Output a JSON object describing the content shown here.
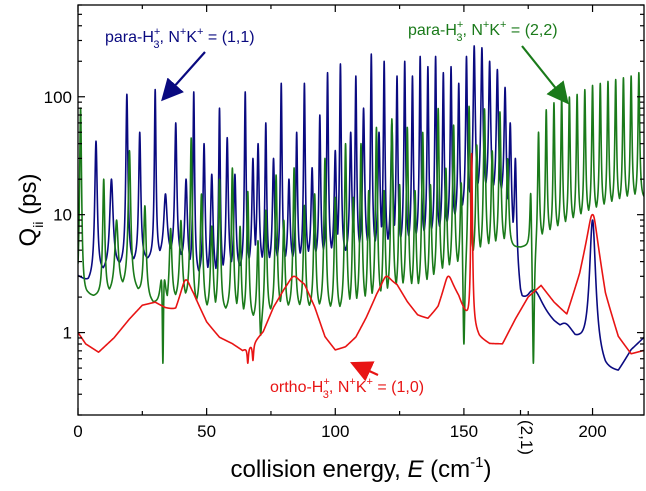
{
  "chart_data": {
    "type": "line",
    "title": "",
    "xlabel": {
      "main": "collision energy, ",
      "italic": "E",
      "unit": " (cm",
      "sup": "-1",
      "close": ")"
    },
    "ylabel": {
      "main": "Q",
      "sub": "ii",
      "unit": " (ps)"
    },
    "xlim": [
      0,
      220
    ],
    "ylim": [
      0.2,
      600
    ],
    "yscale": "log",
    "xticks": [
      {
        "v": 0,
        "label": "0"
      },
      {
        "v": 50,
        "label": "50"
      },
      {
        "v": 100,
        "label": "100"
      },
      {
        "v": 150,
        "label": "150"
      },
      {
        "v": 200,
        "label": "200"
      }
    ],
    "yticks": [
      {
        "v": 1,
        "label": "1"
      },
      {
        "v": 10,
        "label": "10"
      },
      {
        "v": 100,
        "label": "100"
      }
    ],
    "threshold_label": "(2,1)",
    "threshold_x": 172,
    "series": [
      {
        "key": "para11",
        "color": "#0a0a80",
        "baseline": [
          [
            0,
            3.0
          ],
          [
            4,
            2.6
          ],
          [
            10,
            3.2
          ],
          [
            15,
            3.5
          ],
          [
            22,
            3.8
          ],
          [
            30,
            4.2
          ],
          [
            38,
            4.5
          ],
          [
            45,
            3.0
          ],
          [
            52,
            2.6
          ],
          [
            60,
            3.2
          ],
          [
            70,
            3.5
          ],
          [
            80,
            3.6
          ],
          [
            90,
            4.0
          ],
          [
            100,
            4.2
          ],
          [
            110,
            4.5
          ],
          [
            120,
            4.8
          ],
          [
            128,
            5.2
          ],
          [
            135,
            5.8
          ],
          [
            142,
            6.5
          ],
          [
            148,
            9.0
          ],
          [
            152,
            12.0
          ],
          [
            156,
            14.0
          ],
          [
            160,
            14.0
          ],
          [
            165,
            13.0
          ],
          [
            169,
            6.0
          ],
          [
            172,
            2.0
          ],
          [
            175,
            1.5
          ],
          [
            180,
            1.3
          ],
          [
            185,
            1.1
          ],
          [
            190,
            1.0
          ],
          [
            195,
            0.8
          ],
          [
            200,
            0.6
          ],
          [
            205,
            0.45
          ],
          [
            210,
            0.45
          ],
          [
            215,
            0.7
          ],
          [
            220,
            0.9
          ]
        ],
        "peaks": [
          [
            7,
            42,
            0.6
          ],
          [
            13,
            20,
            0.8
          ],
          [
            19,
            105,
            0.5
          ],
          [
            24,
            50,
            0.5
          ],
          [
            30,
            115,
            0.4
          ],
          [
            34,
            15,
            0.8
          ],
          [
            38,
            60,
            0.5
          ],
          [
            42,
            20,
            0.6
          ],
          [
            45,
            110,
            0.4
          ],
          [
            49,
            40,
            0.5
          ],
          [
            52,
            22,
            0.6
          ],
          [
            55,
            80,
            0.4
          ],
          [
            58,
            45,
            0.5
          ],
          [
            61,
            22,
            0.5
          ],
          [
            65,
            110,
            0.4
          ],
          [
            68,
            30,
            0.5
          ],
          [
            70,
            40,
            0.5
          ],
          [
            73,
            60,
            0.4
          ],
          [
            76,
            30,
            0.5
          ],
          [
            79,
            130,
            0.4
          ],
          [
            82,
            20,
            0.5
          ],
          [
            85,
            50,
            0.4
          ],
          [
            88,
            130,
            0.4
          ],
          [
            91,
            25,
            0.5
          ],
          [
            94,
            70,
            0.4
          ],
          [
            97,
            160,
            0.4
          ],
          [
            100,
            35,
            0.5
          ],
          [
            102,
            190,
            0.4
          ],
          [
            106,
            50,
            0.5
          ],
          [
            108,
            150,
            0.4
          ],
          [
            111,
            80,
            0.5
          ],
          [
            114,
            230,
            0.4
          ],
          [
            117,
            50,
            0.5
          ],
          [
            119,
            200,
            0.4
          ],
          [
            122,
            60,
            0.5
          ],
          [
            124,
            150,
            0.4
          ],
          [
            127,
            200,
            0.4
          ],
          [
            130,
            150,
            0.4
          ],
          [
            133,
            220,
            0.4
          ],
          [
            136,
            180,
            0.4
          ],
          [
            139,
            220,
            0.4
          ],
          [
            142,
            160,
            0.4
          ],
          [
            145,
            180,
            0.4
          ],
          [
            148,
            130,
            0.4
          ],
          [
            151,
            220,
            0.4
          ],
          [
            154,
            270,
            0.5
          ],
          [
            157,
            260,
            0.5
          ],
          [
            160,
            200,
            0.5
          ],
          [
            163,
            170,
            0.5
          ],
          [
            166,
            120,
            0.5
          ],
          [
            168,
            60,
            0.5
          ],
          [
            170,
            30,
            0.5
          ],
          [
            177,
            2.3,
            4.0
          ],
          [
            189,
            1.2,
            3.0
          ],
          [
            200,
            9.0,
            1.5
          ]
        ]
      },
      {
        "key": "para22",
        "color": "#1a7a1a",
        "baseline": [
          [
            0,
            1.8
          ],
          [
            4,
            2.0
          ],
          [
            10,
            2.0
          ],
          [
            20,
            2.5
          ],
          [
            28,
            1.8
          ],
          [
            33,
            1.6
          ],
          [
            40,
            2.0
          ],
          [
            47,
            1.5
          ],
          [
            54,
            1.4
          ],
          [
            60,
            1.5
          ],
          [
            66,
            1.2
          ],
          [
            71,
            1.3
          ],
          [
            80,
            1.5
          ],
          [
            88,
            1.5
          ],
          [
            95,
            1.5
          ],
          [
            100,
            1.4
          ],
          [
            110,
            1.5
          ],
          [
            118,
            1.7
          ],
          [
            125,
            2.0
          ],
          [
            133,
            2.0
          ],
          [
            140,
            2.5
          ],
          [
            145,
            3.0
          ],
          [
            150,
            3.5
          ],
          [
            155,
            4.0
          ],
          [
            160,
            4.5
          ],
          [
            165,
            5.0
          ],
          [
            170,
            5.2
          ],
          [
            175,
            5.5
          ],
          [
            180,
            6.0
          ],
          [
            185,
            6.5
          ],
          [
            190,
            7.5
          ],
          [
            195,
            8.5
          ],
          [
            200,
            9.5
          ],
          [
            205,
            10.5
          ],
          [
            210,
            11.5
          ],
          [
            215,
            12.5
          ],
          [
            220,
            13.0
          ]
        ],
        "peaks": [
          [
            1,
            80,
            0.5
          ],
          [
            10,
            20,
            0.5
          ],
          [
            15,
            9,
            0.8
          ],
          [
            20,
            35,
            0.6
          ],
          [
            26,
            12,
            0.6
          ],
          [
            33,
            20,
            0.6
          ],
          [
            36,
            8,
            0.6
          ],
          [
            40,
            9,
            0.6
          ],
          [
            44,
            45,
            0.5
          ],
          [
            48,
            15,
            0.6
          ],
          [
            52,
            8,
            0.6
          ],
          [
            55,
            20,
            0.5
          ],
          [
            60,
            25,
            0.5
          ],
          [
            63,
            8,
            0.5
          ],
          [
            66,
            16,
            0.5
          ],
          [
            70,
            8,
            0.5
          ],
          [
            73,
            12,
            0.5
          ],
          [
            77,
            22,
            0.5
          ],
          [
            80,
            9,
            0.5
          ],
          [
            84,
            25,
            0.5
          ],
          [
            88,
            12,
            0.5
          ],
          [
            92,
            15,
            0.5
          ],
          [
            96,
            30,
            0.5
          ],
          [
            100,
            14,
            0.5
          ],
          [
            104,
            40,
            0.5
          ],
          [
            107,
            14,
            0.5
          ],
          [
            110,
            40,
            0.5
          ],
          [
            113,
            16,
            0.5
          ],
          [
            116,
            55,
            0.5
          ],
          [
            119,
            16,
            0.5
          ],
          [
            122,
            65,
            0.5
          ],
          [
            125,
            18,
            0.5
          ],
          [
            128,
            55,
            0.5
          ],
          [
            131,
            16,
            0.5
          ],
          [
            134,
            50,
            0.5
          ],
          [
            137,
            18,
            0.5
          ],
          [
            140,
            80,
            0.5
          ],
          [
            143,
            25,
            0.5
          ],
          [
            146,
            60,
            0.5
          ],
          [
            149,
            30,
            0.5
          ],
          [
            152,
            100,
            0.5
          ],
          [
            155,
            40,
            0.5
          ],
          [
            158,
            80,
            0.5
          ],
          [
            161,
            35,
            0.5
          ],
          [
            164,
            75,
            0.5
          ],
          [
            167,
            30,
            0.5
          ],
          [
            176,
            25,
            0.4
          ],
          [
            179,
            60,
            0.4
          ],
          [
            182,
            80,
            0.4
          ],
          [
            185,
            90,
            0.4
          ],
          [
            188,
            100,
            0.4
          ],
          [
            191,
            100,
            0.4
          ],
          [
            194,
            105,
            0.4
          ],
          [
            197,
            115,
            0.4
          ],
          [
            200,
            125,
            0.4
          ],
          [
            203,
            130,
            0.4
          ],
          [
            206,
            135,
            0.4
          ],
          [
            209,
            140,
            0.4
          ],
          [
            212,
            145,
            0.4
          ],
          [
            215,
            150,
            0.4
          ],
          [
            218,
            160,
            0.4
          ]
        ],
        "dips": [
          [
            33,
            0.55,
            0.4
          ],
          [
            71,
            0.95,
            0.4
          ],
          [
            150,
            0.8,
            0.4
          ],
          [
            177,
            0.55,
            0.4
          ]
        ]
      },
      {
        "key": "ortho10",
        "color": "#e81414",
        "baseline": [
          [
            0,
            1.0
          ],
          [
            3,
            0.8
          ],
          [
            8,
            0.68
          ],
          [
            14,
            0.9
          ],
          [
            20,
            1.3
          ],
          [
            25,
            1.7
          ],
          [
            30,
            1.8
          ],
          [
            34,
            1.6
          ],
          [
            38,
            1.5
          ],
          [
            42,
            2.5
          ],
          [
            45,
            2.0
          ],
          [
            50,
            1.2
          ],
          [
            55,
            0.9
          ],
          [
            60,
            0.8
          ],
          [
            64,
            0.7
          ],
          [
            68,
            0.8
          ],
          [
            72,
            1.0
          ],
          [
            76,
            1.6
          ],
          [
            80,
            2.2
          ],
          [
            84,
            2.8
          ],
          [
            88,
            2.5
          ],
          [
            92,
            1.6
          ],
          [
            96,
            0.9
          ],
          [
            100,
            0.7
          ],
          [
            104,
            0.75
          ],
          [
            108,
            0.9
          ],
          [
            112,
            1.3
          ],
          [
            116,
            2.0
          ],
          [
            120,
            2.8
          ],
          [
            124,
            2.5
          ],
          [
            128,
            1.8
          ],
          [
            132,
            1.4
          ],
          [
            136,
            1.3
          ],
          [
            140,
            1.6
          ],
          [
            144,
            2.8
          ],
          [
            148,
            2.0
          ],
          [
            152,
            1.2
          ],
          [
            156,
            0.9
          ],
          [
            160,
            0.8
          ],
          [
            165,
            0.8
          ],
          [
            170,
            1.3
          ],
          [
            175,
            2.0
          ],
          [
            180,
            2.5
          ],
          [
            185,
            1.8
          ],
          [
            190,
            1.4
          ],
          [
            195,
            3.0
          ],
          [
            200,
            9.0
          ],
          [
            205,
            2.0
          ],
          [
            210,
            0.9
          ],
          [
            215,
            0.65
          ],
          [
            220,
            0.7
          ]
        ],
        "peaks": [
          [
            42,
            2.8,
            1.5
          ],
          [
            84,
            3.0,
            1.8
          ],
          [
            120,
            3.0,
            1.5
          ],
          [
            144,
            3.0,
            1.2
          ],
          [
            153,
            33,
            0.4
          ],
          [
            200,
            10,
            1.2
          ]
        ],
        "dips": [
          [
            66,
            0.55,
            0.3
          ],
          [
            68,
            0.58,
            0.3
          ]
        ]
      }
    ],
    "annotations": [
      {
        "key": "para11",
        "lines": [
          {
            "pre": "para-H",
            "sup1": "+",
            "sub1": "3",
            "mid": ", N",
            "sup2": "+",
            "mid2": "K",
            "sup3": "+",
            "post": " = (1,1)"
          }
        ]
      },
      {
        "key": "para22",
        "lines": [
          {
            "pre": "para-H",
            "sup1": "+",
            "sub1": "3",
            "mid": ", N",
            "sup2": "+",
            "mid2": "K",
            "sup3": "+",
            "post": " = (2,2)"
          }
        ]
      },
      {
        "key": "ortho10",
        "lines": [
          {
            "pre": "ortho-H",
            "sup1": "+",
            "sub1": "3",
            "mid": ", N",
            "sup2": "+",
            "mid2": "K",
            "sup3": "+",
            "post": " = (1,0)"
          }
        ]
      }
    ]
  }
}
